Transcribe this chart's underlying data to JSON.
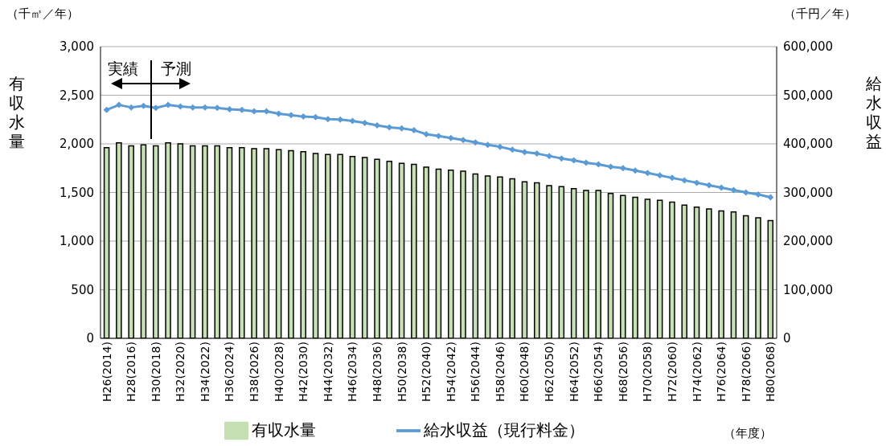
{
  "chart_data": {
    "type": "bar",
    "categories": [
      "H26(2014)",
      null,
      "H28(2016)",
      null,
      "H30(2018)",
      null,
      "H32(2020)",
      null,
      "H34(2022)",
      null,
      "H36(2024)",
      null,
      "H38(2026)",
      null,
      "H40(2028)",
      null,
      "H42(2030)",
      null,
      "H44(2032)",
      null,
      "H46(2034)",
      null,
      "H48(2036)",
      null,
      "H50(2038)",
      null,
      "H52(2040)",
      null,
      "H54(2042)",
      null,
      "H56(2044)",
      null,
      "H58(2046)",
      null,
      "H60(2048)",
      null,
      "H62(2050)",
      null,
      "H64(2052)",
      null,
      "H66(2054)",
      null,
      "H68(2056)",
      null,
      "H70(2058)",
      null,
      "H72(2060)",
      null,
      "H74(2062)",
      null,
      "H76(2064)",
      null,
      "H78(2066)",
      null,
      "H80(2068)"
    ],
    "series": [
      {
        "name": "有収水量",
        "color": "#c6e0b4",
        "values": [
          1960,
          2010,
          1980,
          1990,
          1980,
          2010,
          2000,
          1980,
          1980,
          1980,
          1960,
          1960,
          1950,
          1950,
          1940,
          1930,
          1920,
          1900,
          1890,
          1890,
          1870,
          1860,
          1840,
          1820,
          1800,
          1790,
          1760,
          1740,
          1730,
          1720,
          1690,
          1670,
          1660,
          1640,
          1610,
          1600,
          1570,
          1560,
          1540,
          1520,
          1520,
          1490,
          1470,
          1450,
          1430,
          1420,
          1400,
          1370,
          1350,
          1330,
          1310,
          1300,
          1260,
          1240,
          1210
        ]
      },
      {
        "name": "給水収益（現行料金）",
        "type": "line",
        "axis": "y2",
        "color": "#5b9bd5",
        "values": [
          470000,
          480000,
          475000,
          478000,
          474000,
          480000,
          477000,
          475000,
          475000,
          474000,
          471000,
          470000,
          467000,
          467000,
          462000,
          459000,
          456000,
          455000,
          451000,
          450000,
          447000,
          443000,
          438000,
          434000,
          432000,
          428000,
          420000,
          416000,
          412000,
          408000,
          403000,
          398000,
          394000,
          388000,
          383000,
          380000,
          375000,
          370000,
          366000,
          361000,
          358000,
          353000,
          350000,
          345000,
          340000,
          335000,
          330000,
          325000,
          320000,
          315000,
          310000,
          305000,
          300000,
          296000,
          290000
        ]
      }
    ],
    "ylabel": "有収水量",
    "y2label": "給水収益",
    "ylim": [
      0,
      3000
    ],
    "yticks": [
      {
        "value": 0,
        "label": "0"
      },
      {
        "value": 500,
        "label": "500"
      },
      {
        "value": 1000,
        "label": "1,000"
      },
      {
        "value": 1500,
        "label": "1,500"
      },
      {
        "value": 2000,
        "label": "2,000"
      },
      {
        "value": 2500,
        "label": "2,500"
      },
      {
        "value": 3000,
        "label": "3,000"
      }
    ],
    "y2lim": [
      0,
      600000
    ],
    "y2ticks": [
      {
        "value": 0,
        "label": "0"
      },
      {
        "value": 100000,
        "label": "100,000"
      },
      {
        "value": 200000,
        "label": "200,000"
      },
      {
        "value": 300000,
        "label": "300,000"
      },
      {
        "value": 400000,
        "label": "400,000"
      },
      {
        "value": 500000,
        "label": "500,000"
      },
      {
        "value": 600000,
        "label": "600,000"
      }
    ],
    "annotations": [
      "（千㎥／年）",
      "（千円／年）",
      "（年度）",
      "実績",
      "予測"
    ],
    "grid": "y",
    "legend": "bottom",
    "marker": "diamond",
    "line_style": "solid"
  }
}
